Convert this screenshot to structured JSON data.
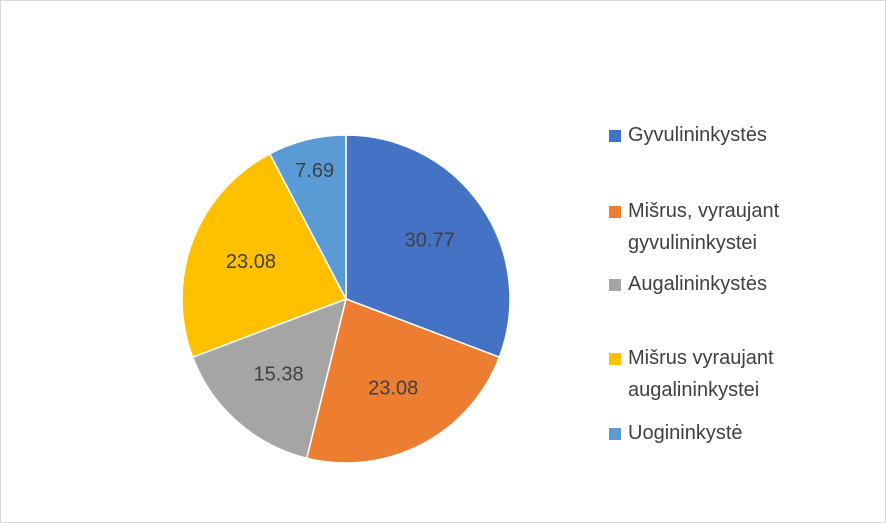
{
  "chart_data": {
    "type": "pie",
    "categories": [
      "Gyvulininkystės",
      "Mišrus, vyraujant gyvulininkystei",
      "Augalininkystės",
      "Mišrus vyraujant augalininkystei",
      "Uogininkystė"
    ],
    "values": [
      30.77,
      23.08,
      15.38,
      23.08,
      7.69
    ],
    "colors": [
      "#4472c4",
      "#ed7d31",
      "#a5a5a5",
      "#ffc000",
      "#5b9bd5"
    ],
    "legend": "right"
  }
}
